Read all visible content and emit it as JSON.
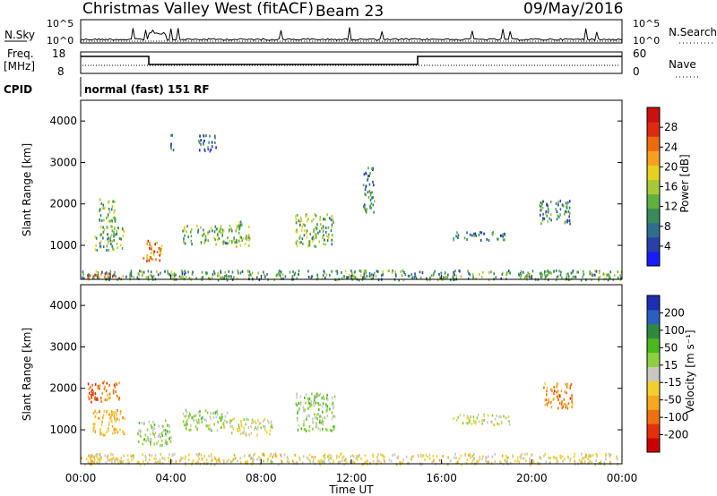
{
  "header": {
    "title": "Christmas Valley West (fitACF)",
    "beam": "Beam 23",
    "date": "09/May/2016"
  },
  "noise_panel": {
    "left_label": "N.Sky",
    "right_label": "N.Search",
    "left_ticks": [
      "10^5",
      "10^0"
    ],
    "right_ticks": [
      "10^5",
      "10^0"
    ]
  },
  "freq_panel": {
    "left_label": "Freq.",
    "left_unit": "[MHz]",
    "right_label": "Nave",
    "left_ticks": [
      "18",
      "8"
    ],
    "right_ticks": [
      "60",
      "0"
    ]
  },
  "cpid": {
    "label": "CPID",
    "text": "normal (fast) 151 RF"
  },
  "chart_data": [
    {
      "type": "heatmap",
      "name_panel": "power",
      "ylabel": "Slant Range [km]",
      "yticks": [
        "1000",
        "2000",
        "3000",
        "4000"
      ],
      "ylim": [
        180,
        4500
      ],
      "colorbar_label": "Power [dB]",
      "colorbar_ticks": [
        "4",
        "8",
        "12",
        "16",
        "20",
        "24",
        "28"
      ],
      "colorbar_colors": [
        "#1a1aff",
        "#2a3fa8",
        "#2e6f90",
        "#3a8a5a",
        "#60b040",
        "#a8c838",
        "#e8d020",
        "#f5a020",
        "#ee6a10",
        "#dd2a10",
        "#cc1010"
      ],
      "clusters": [
        {
          "t": [
            0.2,
            1.8
          ],
          "r": [
            200,
            350
          ],
          "level": 26
        },
        {
          "t": [
            0.8,
            1.6
          ],
          "r": [
            1600,
            2150
          ],
          "level": 12
        },
        {
          "t": [
            0.6,
            1.9
          ],
          "r": [
            900,
            1500
          ],
          "level": 12
        },
        {
          "t": [
            2.7,
            3.6
          ],
          "r": [
            650,
            1150
          ],
          "level": 22
        },
        {
          "t": [
            3.9,
            4.1
          ],
          "r": [
            3300,
            3700
          ],
          "level": 6
        },
        {
          "t": [
            5.2,
            6.0
          ],
          "r": [
            3300,
            3700
          ],
          "level": 6
        },
        {
          "t": [
            4.5,
            6.8
          ],
          "r": [
            1050,
            1500
          ],
          "level": 12
        },
        {
          "t": [
            6.8,
            7.5
          ],
          "r": [
            1000,
            1600
          ],
          "level": 14
        },
        {
          "t": [
            9.5,
            11.2
          ],
          "r": [
            1000,
            1800
          ],
          "level": 12
        },
        {
          "t": [
            12.5,
            13.0
          ],
          "r": [
            1800,
            2900
          ],
          "level": 8
        },
        {
          "t": [
            16.5,
            18.8
          ],
          "r": [
            1150,
            1350
          ],
          "level": 8
        },
        {
          "t": [
            20.3,
            21.7
          ],
          "r": [
            1550,
            2100
          ],
          "level": 8
        },
        {
          "t": [
            0.0,
            24.0
          ],
          "r": [
            190,
            420
          ],
          "level": 10
        }
      ]
    },
    {
      "type": "heatmap",
      "name_panel": "velocity",
      "ylabel": "Slant Range [km]",
      "yticks": [
        "1000",
        "2000",
        "3000",
        "4000"
      ],
      "ylim": [
        180,
        4500
      ],
      "xticks": [
        "00:00",
        "04:00",
        "08:00",
        "12:00",
        "16:00",
        "20:00",
        "00:00"
      ],
      "xlabel": "Time UT",
      "xlim_hours": [
        0,
        24
      ],
      "colorbar_label": "Velocity [m s⁻¹]",
      "colorbar_ticks": [
        "200",
        "100",
        "50",
        "15",
        "-15",
        "-50",
        "-100",
        "-200"
      ],
      "colorbar_colors": [
        "#1b2fb0",
        "#2a5fc0",
        "#2f8a40",
        "#4ab820",
        "#8ed040",
        "#c8c8c0",
        "#f2d030",
        "#f5a820",
        "#ee7010",
        "#e23010",
        "#cc0000"
      ],
      "clusters": [
        {
          "t": [
            0.2,
            1.8
          ],
          "r": [
            300,
            420
          ],
          "vel": -40
        },
        {
          "t": [
            0.3,
            1.7
          ],
          "r": [
            1700,
            2200
          ],
          "vel": -150
        },
        {
          "t": [
            0.5,
            2.0
          ],
          "r": [
            900,
            1500
          ],
          "vel": -80
        },
        {
          "t": [
            2.5,
            4.0
          ],
          "r": [
            650,
            1250
          ],
          "vel": 40
        },
        {
          "t": [
            4.5,
            6.5
          ],
          "r": [
            1000,
            1500
          ],
          "vel": 30
        },
        {
          "t": [
            6.5,
            8.5
          ],
          "r": [
            900,
            1300
          ],
          "vel": 0
        },
        {
          "t": [
            9.5,
            11.3
          ],
          "r": [
            1000,
            1900
          ],
          "vel": 40
        },
        {
          "t": [
            16.5,
            19.0
          ],
          "r": [
            1150,
            1400
          ],
          "vel": 0
        },
        {
          "t": [
            20.5,
            21.8
          ],
          "r": [
            1550,
            2150
          ],
          "vel": -120
        },
        {
          "t": [
            0.0,
            24.0
          ],
          "r": [
            190,
            450
          ],
          "vel": -30
        }
      ]
    }
  ]
}
